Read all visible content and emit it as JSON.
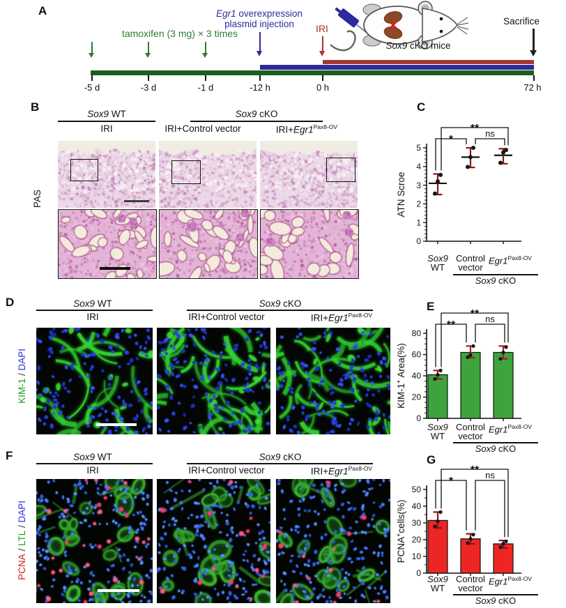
{
  "panels": {
    "a": "A",
    "b": "B",
    "c": "C",
    "d": "D",
    "e": "E",
    "f": "F",
    "g": "G"
  },
  "timeline": {
    "tamoxifen_label": "tamoxifen (3 mg) × 3 times",
    "egr1_line1_italic": "Egr1",
    "egr1_line1_rest": " overexpression",
    "egr1_line2": "plasmid injection",
    "iri_label": "IRI",
    "sacrifice_label": "Sacrifice",
    "mouse_label_italic": "Sox9",
    "mouse_label_rest": " cKO mice",
    "ticks": [
      "-5 d",
      "-3 d",
      "-1 d",
      "-12 h",
      "0 h",
      "72 h"
    ],
    "colors": {
      "tamoxifen_text": "#2e7d32",
      "plasmid": "#2b2b9e",
      "iri_text": "#b03028",
      "bar_green": "#1b5e20",
      "bar_blue": "#2b2b9e",
      "bar_red": "#a33a30"
    }
  },
  "cohort_headers": {
    "wt_italic": "Sox9",
    "wt_rest": " WT",
    "cko_italic": "Sox9",
    "cko_rest": " cKO",
    "iri": "IRI",
    "iri_control": "IRI+Control vector",
    "iri_egr1_prefix": "IRI+",
    "egr1_italic": "Egr1",
    "egr1_sup": "Pax8-OV"
  },
  "stains": {
    "pas_label": "PAS",
    "kim1_name": "KIM-1",
    "kim1_color": "#1f9e1f",
    "ltl_name": "LTL",
    "ltl_color": "#1f9e1f",
    "dapi_name": "DAPI",
    "dapi_color": "#2a35d6",
    "pcna_name": "PCNA",
    "pcna_color": "#cc2222",
    "separator": " / "
  },
  "group_labels": {
    "g1_italic": "Sox9",
    "g1_line2": "WT",
    "g2_line1": "Control",
    "g2_line2": "vector",
    "g3_italic": "Egr1",
    "g3_sup": "Pax8-OV",
    "cko_italic": "Sox9",
    "cko_rest": " cKO"
  },
  "chart_data": [
    {
      "id": "atn",
      "type": "scatter",
      "ylabel_main": "ATN Scroe",
      "ylabel_sup": "",
      "ylabel_rest": "",
      "ylim": [
        0,
        5
      ],
      "yticks": [
        0,
        1,
        2,
        3,
        4,
        5
      ],
      "yminor": 0.2,
      "groups": [
        "Sox9 WT",
        "Control vector",
        "Egr1Pax8-OV"
      ],
      "group_parent": "Sox9 cKO",
      "means": [
        3.1,
        4.5,
        4.6
      ],
      "err_low": [
        2.5,
        3.95,
        4.15
      ],
      "err_high": [
        3.6,
        5.0,
        4.95
      ],
      "points": [
        [
          2.55,
          3.2,
          3.55
        ],
        [
          3.98,
          4.5,
          5.0
        ],
        [
          4.2,
          4.75,
          4.88
        ]
      ],
      "significance": [
        {
          "pair": [
            0,
            1
          ],
          "label": "*",
          "level": 0
        },
        {
          "pair": [
            0,
            2
          ],
          "label": "**",
          "level": 1
        },
        {
          "pair": [
            1,
            2
          ],
          "label": "ns",
          "level": 0
        }
      ],
      "point_color": "#151515",
      "error_color": "#8c1616"
    },
    {
      "id": "kim1",
      "type": "bar",
      "ylabel_main": "KIM-1",
      "ylabel_sup": "+",
      "ylabel_rest": " Area(%)",
      "ylim": [
        0,
        80
      ],
      "yticks": [
        0,
        20,
        40,
        60,
        80
      ],
      "yminor": 5,
      "groups": [
        "Sox9 WT",
        "Control vector",
        "Egr1Pax8-OV"
      ],
      "group_parent": "Sox9 cKO",
      "values": [
        41,
        62,
        62
      ],
      "err_low": [
        37,
        57,
        56
      ],
      "err_high": [
        45,
        68,
        68
      ],
      "points": [
        [
          37,
          41,
          45
        ],
        [
          57.5,
          59.5,
          68
        ],
        [
          56,
          62,
          67
        ]
      ],
      "significance": [
        {
          "pair": [
            0,
            1
          ],
          "label": "**",
          "level": 0
        },
        {
          "pair": [
            0,
            2
          ],
          "label": "**",
          "level": 1
        },
        {
          "pair": [
            1,
            2
          ],
          "label": "ns",
          "level": 0
        }
      ],
      "bar_color": "#3da43d",
      "point_color": "#151515",
      "error_color": "#a32020"
    },
    {
      "id": "pcna",
      "type": "bar",
      "ylabel_main": "PCNA",
      "ylabel_sup": "+",
      "ylabel_rest": "cells(%)",
      "ylim": [
        0,
        50
      ],
      "yticks": [
        0,
        10,
        20,
        30,
        40,
        50
      ],
      "yminor": 5,
      "groups": [
        "Sox9 WT",
        "Control vector",
        "Egr1Pax8-OV"
      ],
      "group_parent": "Sox9 cKO",
      "values": [
        31.5,
        20.5,
        17.5
      ],
      "err_low": [
        27,
        17.5,
        15
      ],
      "err_high": [
        36.5,
        23.5,
        19.5
      ],
      "points": [
        [
          28,
          31,
          36.5
        ],
        [
          18,
          20.5,
          23
        ],
        [
          15.5,
          17.5,
          19
        ]
      ],
      "significance": [
        {
          "pair": [
            0,
            1
          ],
          "label": "*",
          "level": 0
        },
        {
          "pair": [
            0,
            2
          ],
          "label": "**",
          "level": 1
        },
        {
          "pair": [
            1,
            2
          ],
          "label": "ns",
          "level": 0
        }
      ],
      "bar_color": "#ee2525",
      "point_color": "#151515",
      "error_color": "#8c1616"
    }
  ]
}
